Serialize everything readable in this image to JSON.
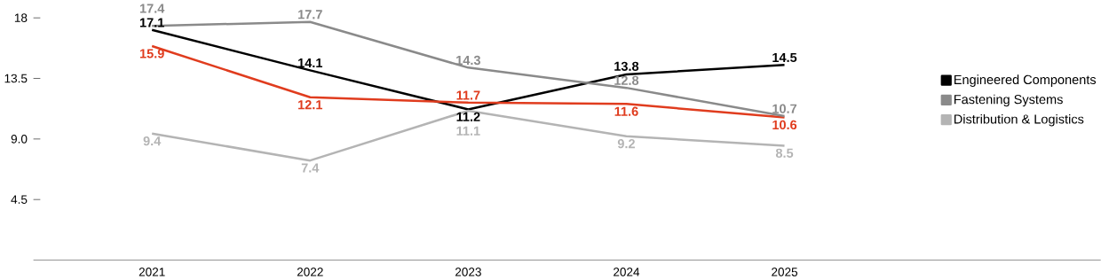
{
  "chart_data": {
    "type": "line",
    "categories": [
      "2021",
      "2022",
      "2023",
      "2024",
      "2025"
    ],
    "series": [
      {
        "name": "Engineered Components",
        "color": "#000000",
        "values": [
          17.1,
          14.1,
          11.2,
          13.8,
          14.5
        ]
      },
      {
        "color": "#e03c1e",
        "values": [
          15.9,
          12.1,
          11.7,
          11.6,
          10.6
        ]
      },
      {
        "name": "Fastening Systems",
        "color": "#8a8a8a",
        "values": [
          17.4,
          17.7,
          14.3,
          12.8,
          10.7
        ]
      },
      {
        "name": "Distribution & Logistics",
        "color": "#b4b4b4",
        "values": [
          9.4,
          7.4,
          11.1,
          9.2,
          8.5
        ]
      }
    ],
    "ylim": [
      0,
      18
    ],
    "yticks": [
      4.5,
      {
        "value": 9,
        "label": "9.0"
      },
      13.5,
      18
    ],
    "data_labels": true,
    "legend": "right"
  }
}
